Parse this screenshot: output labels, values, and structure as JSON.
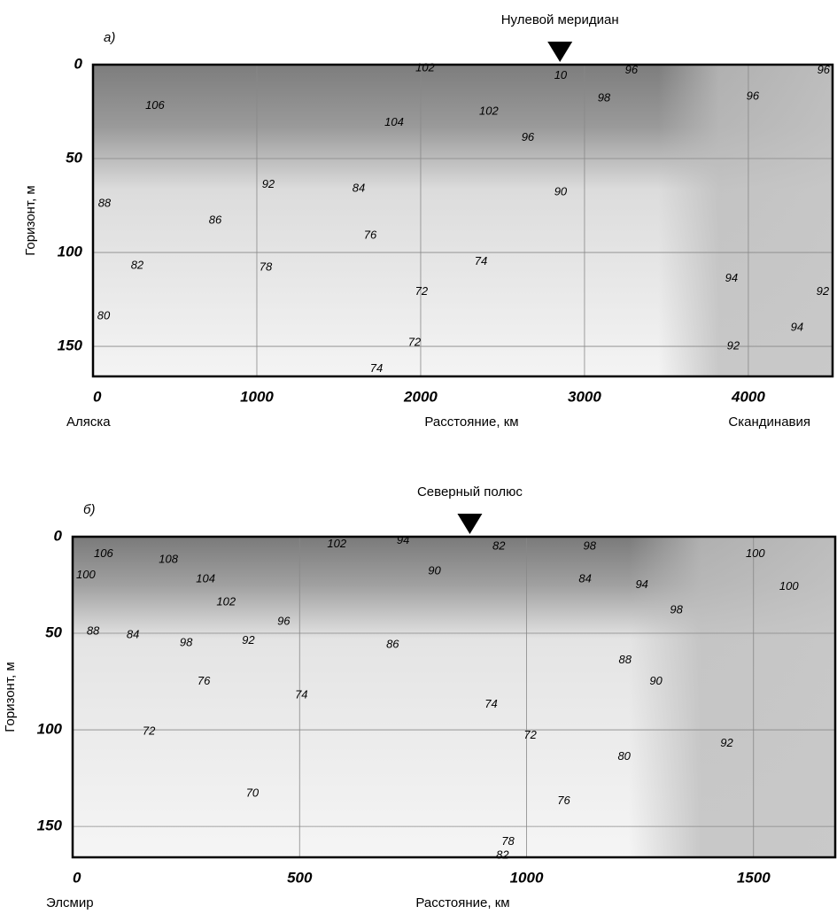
{
  "chart_data": [
    {
      "type": "contour",
      "panel_label": "а)",
      "marker_label": "Нулевой меридиан",
      "marker_x": 2850,
      "x_label": "Расстояние, км",
      "y_label": "Горизонт, м",
      "left_label": "Аляска",
      "right_label": "Скандинавия",
      "xlim": [
        0,
        4514
      ],
      "ylim": [
        0,
        166
      ],
      "xticks": [
        0,
        1000,
        2000,
        3000,
        4000
      ],
      "yticks": [
        0,
        50,
        100,
        150
      ],
      "grid": true,
      "contour_labels": [
        {
          "value": 106,
          "x": 378,
          "y": 22
        },
        {
          "value": 102,
          "x": 2027,
          "y": 2
        },
        {
          "value": 104,
          "x": 1838,
          "y": 31
        },
        {
          "value": 102,
          "x": 2416,
          "y": 25
        },
        {
          "value": 10,
          "x": 2854,
          "y": 6
        },
        {
          "value": 96,
          "x": 3286,
          "y": 3
        },
        {
          "value": 98,
          "x": 3119,
          "y": 18
        },
        {
          "value": 96,
          "x": 4459,
          "y": 3
        },
        {
          "value": 96,
          "x": 4027,
          "y": 17
        },
        {
          "value": 96,
          "x": 2654,
          "y": 39
        },
        {
          "value": 92,
          "x": 1070,
          "y": 64
        },
        {
          "value": 84,
          "x": 1622,
          "y": 66
        },
        {
          "value": 90,
          "x": 2854,
          "y": 68
        },
        {
          "value": 88,
          "x": 70,
          "y": 74
        },
        {
          "value": 86,
          "x": 746,
          "y": 83
        },
        {
          "value": 76,
          "x": 1692,
          "y": 91
        },
        {
          "value": 82,
          "x": 270,
          "y": 107
        },
        {
          "value": 78,
          "x": 1054,
          "y": 108
        },
        {
          "value": 74,
          "x": 2368,
          "y": 105
        },
        {
          "value": 94,
          "x": 3897,
          "y": 114
        },
        {
          "value": 72,
          "x": 2005,
          "y": 121
        },
        {
          "value": 80,
          "x": 65,
          "y": 134
        },
        {
          "value": 92,
          "x": 4454,
          "y": 121
        },
        {
          "value": 72,
          "x": 1962,
          "y": 148
        },
        {
          "value": 94,
          "x": 4297,
          "y": 140
        },
        {
          "value": 92,
          "x": 3908,
          "y": 150
        },
        {
          "value": 74,
          "x": 1730,
          "y": 162
        }
      ]
    },
    {
      "type": "contour",
      "panel_label": "б)",
      "marker_label": "Северный полюс",
      "marker_x": 875,
      "x_label": "Расстояние, км",
      "y_label": "Горизонт, м",
      "left_label": "Элсмир",
      "xlim": [
        0,
        1680
      ],
      "ylim": [
        0,
        166
      ],
      "xticks": [
        0,
        500,
        1000,
        1500
      ],
      "yticks": [
        0,
        50,
        100,
        150
      ],
      "grid": true,
      "contour_labels": [
        {
          "value": 106,
          "x": 68,
          "y": 9
        },
        {
          "value": 108,
          "x": 211,
          "y": 12
        },
        {
          "value": 102,
          "x": 582,
          "y": 4
        },
        {
          "value": 94,
          "x": 728,
          "y": 2
        },
        {
          "value": 90,
          "x": 797,
          "y": 18
        },
        {
          "value": 82,
          "x": 939,
          "y": 5
        },
        {
          "value": 98,
          "x": 1139,
          "y": 5
        },
        {
          "value": 100,
          "x": 29,
          "y": 20
        },
        {
          "value": 104,
          "x": 293,
          "y": 22
        },
        {
          "value": 102,
          "x": 338,
          "y": 34
        },
        {
          "value": 84,
          "x": 1129,
          "y": 22
        },
        {
          "value": 94,
          "x": 1254,
          "y": 25
        },
        {
          "value": 98,
          "x": 1330,
          "y": 38
        },
        {
          "value": 100,
          "x": 1504,
          "y": 9
        },
        {
          "value": 100,
          "x": 1578,
          "y": 26
        },
        {
          "value": 96,
          "x": 465,
          "y": 44
        },
        {
          "value": 92,
          "x": 387,
          "y": 54
        },
        {
          "value": 98,
          "x": 250,
          "y": 55
        },
        {
          "value": 88,
          "x": 45,
          "y": 49
        },
        {
          "value": 84,
          "x": 133,
          "y": 51
        },
        {
          "value": 86,
          "x": 705,
          "y": 56
        },
        {
          "value": 88,
          "x": 1217,
          "y": 64
        },
        {
          "value": 90,
          "x": 1285,
          "y": 75
        },
        {
          "value": 76,
          "x": 289,
          "y": 75
        },
        {
          "value": 74,
          "x": 504,
          "y": 82
        },
        {
          "value": 74,
          "x": 922,
          "y": 87
        },
        {
          "value": 92,
          "x": 1441,
          "y": 107
        },
        {
          "value": 72,
          "x": 168,
          "y": 101
        },
        {
          "value": 72,
          "x": 1008,
          "y": 103
        },
        {
          "value": 80,
          "x": 1215,
          "y": 114
        },
        {
          "value": 70,
          "x": 396,
          "y": 133
        },
        {
          "value": 76,
          "x": 1082,
          "y": 137
        },
        {
          "value": 78,
          "x": 959,
          "y": 158
        },
        {
          "value": 82,
          "x": 947,
          "y": 165
        }
      ]
    }
  ]
}
